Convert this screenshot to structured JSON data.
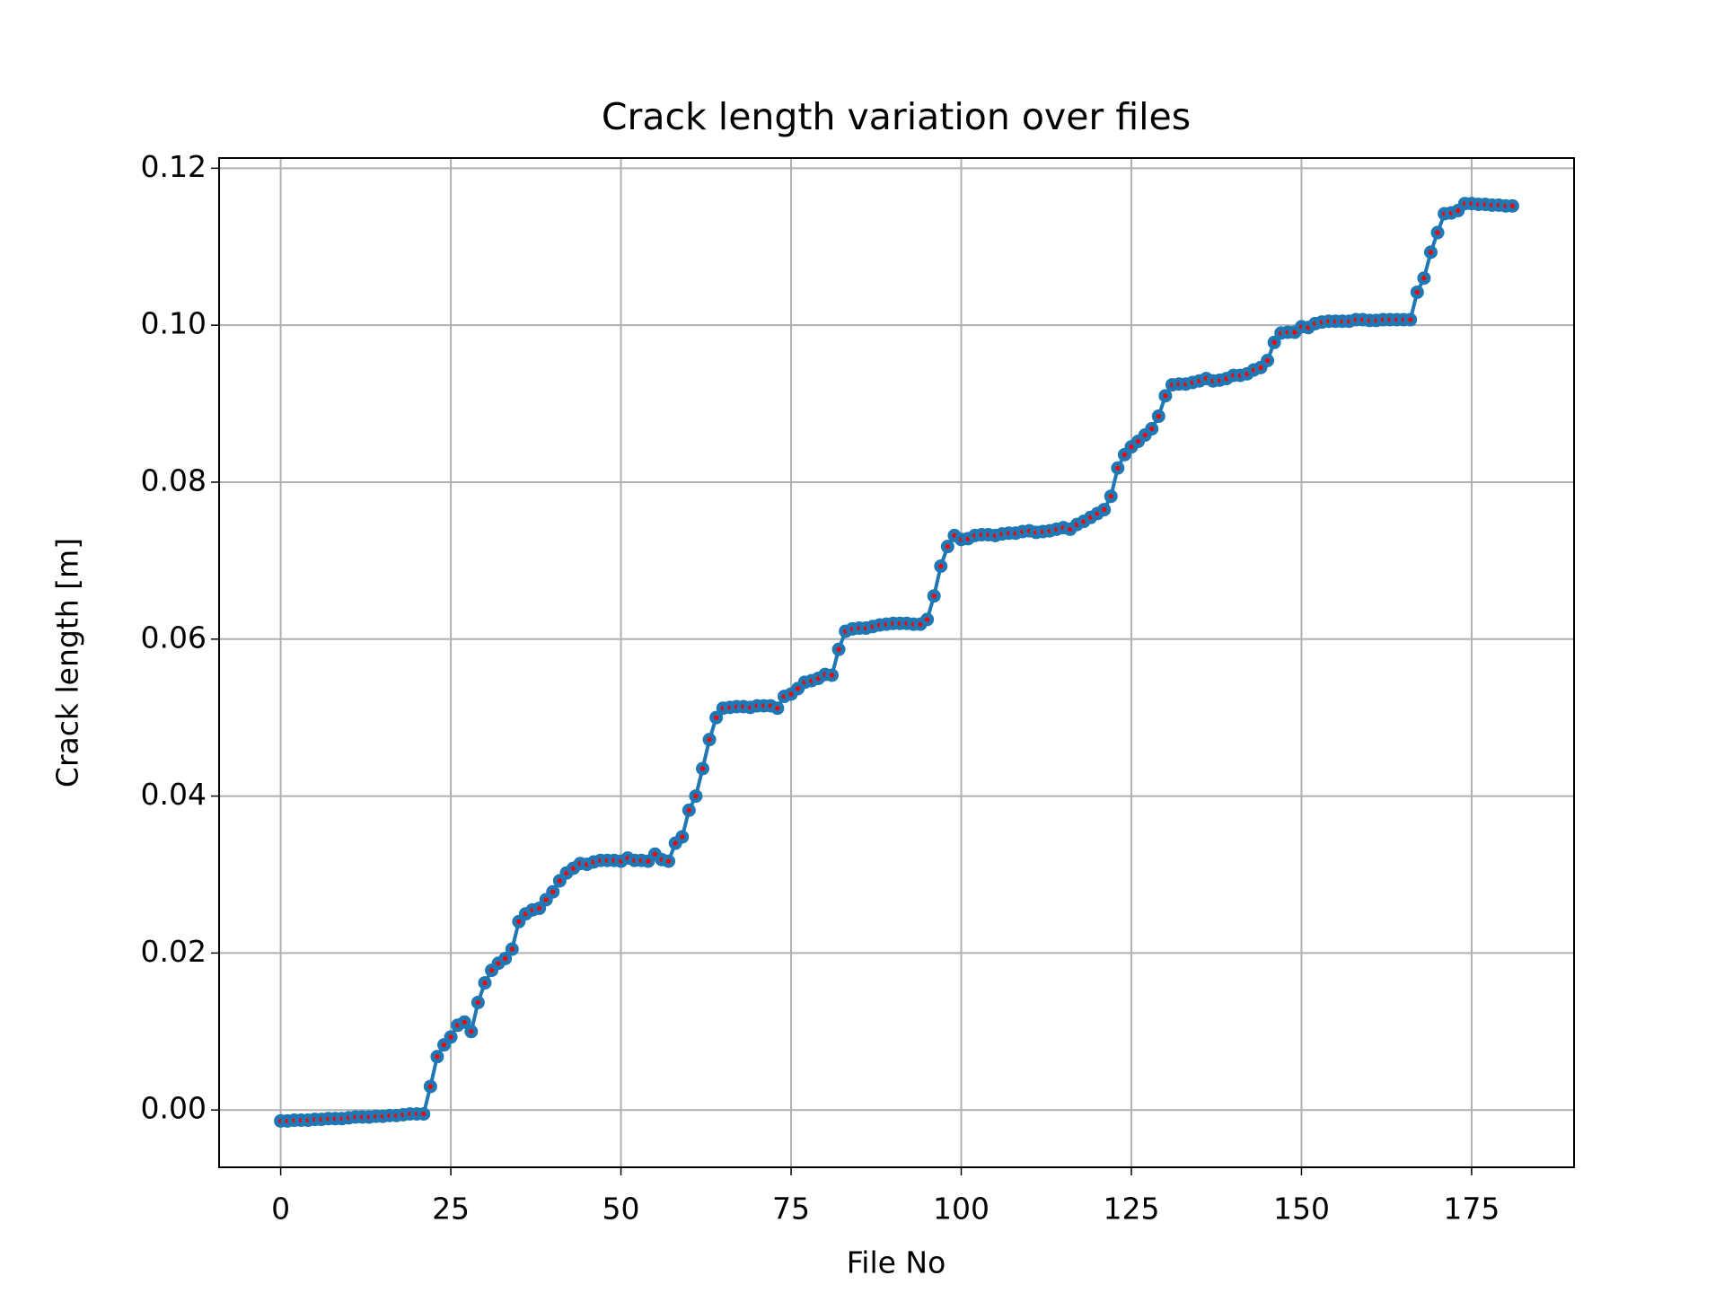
{
  "chart_data": {
    "type": "line",
    "title": "Crack length variation over files",
    "xlabel": "File No",
    "ylabel": "Crack length [m]",
    "xlim": [
      -9.05,
      190.05
    ],
    "ylim": [
      -0.0073,
      0.1213
    ],
    "xticks": [
      0,
      25,
      50,
      75,
      100,
      125,
      150,
      175
    ],
    "yticks": [
      {
        "value": 0,
        "label": "0.00"
      },
      {
        "value": 0.02,
        "label": "0.02"
      },
      {
        "value": 0.04,
        "label": "0.04"
      },
      {
        "value": 0.06,
        "label": "0.06"
      },
      {
        "value": 0.08,
        "label": "0.08"
      },
      {
        "value": 0.1,
        "label": "0.10"
      },
      {
        "value": 0.12,
        "label": "0.12"
      }
    ],
    "grid": true,
    "x": [
      0,
      1,
      2,
      3,
      4,
      5,
      6,
      7,
      8,
      9,
      10,
      11,
      12,
      13,
      14,
      15,
      16,
      17,
      18,
      19,
      20,
      21,
      22,
      23,
      24,
      25,
      26,
      27,
      28,
      29,
      30,
      31,
      32,
      33,
      34,
      35,
      36,
      37,
      38,
      39,
      40,
      41,
      42,
      43,
      44,
      45,
      46,
      47,
      48,
      49,
      50,
      51,
      52,
      53,
      54,
      55,
      56,
      57,
      58,
      59,
      60,
      61,
      62,
      63,
      64,
      65,
      66,
      67,
      68,
      69,
      70,
      71,
      72,
      73,
      74,
      75,
      76,
      77,
      78,
      79,
      80,
      81,
      82,
      83,
      84,
      85,
      86,
      87,
      88,
      89,
      90,
      91,
      92,
      93,
      94,
      95,
      96,
      97,
      98,
      99,
      100,
      101,
      102,
      103,
      104,
      105,
      106,
      107,
      108,
      109,
      110,
      111,
      112,
      113,
      114,
      115,
      116,
      117,
      118,
      119,
      120,
      121,
      122,
      123,
      124,
      125,
      126,
      127,
      128,
      129,
      130,
      131,
      132,
      133,
      134,
      135,
      136,
      137,
      138,
      139,
      140,
      141,
      142,
      143,
      144,
      145,
      146,
      147,
      148,
      149,
      150,
      151,
      152,
      153,
      154,
      155,
      156,
      157,
      158,
      159,
      160,
      161,
      162,
      163,
      164,
      165,
      166,
      167,
      168,
      169,
      170,
      171,
      172,
      173,
      174,
      175,
      176,
      177,
      178,
      179,
      180,
      181
    ],
    "series": [
      {
        "color": "#1f77b4",
        "marker_face_color": "#ff0000",
        "values": [
          -0.0014,
          -0.0014,
          -0.0013,
          -0.0013,
          -0.0013,
          -0.0012,
          -0.0012,
          -0.0011,
          -0.0011,
          -0.0011,
          -0.001,
          -0.0009,
          -0.0009,
          -0.0009,
          -0.0008,
          -0.0008,
          -0.0007,
          -0.0007,
          -0.0006,
          -0.0005,
          -0.0005,
          -0.0005,
          0.003,
          0.0068,
          0.0083,
          0.0093,
          0.0108,
          0.0112,
          0.01,
          0.0137,
          0.0162,
          0.0178,
          0.0187,
          0.0193,
          0.0205,
          0.024,
          0.025,
          0.0255,
          0.0257,
          0.0268,
          0.0278,
          0.0292,
          0.0302,
          0.0308,
          0.0314,
          0.0313,
          0.0316,
          0.0318,
          0.0318,
          0.0318,
          0.0317,
          0.0321,
          0.0318,
          0.0318,
          0.0317,
          0.0326,
          0.0319,
          0.0317,
          0.034,
          0.0348,
          0.0382,
          0.04,
          0.0435,
          0.0472,
          0.05,
          0.0512,
          0.0513,
          0.0514,
          0.0514,
          0.0513,
          0.0515,
          0.0515,
          0.0515,
          0.0512,
          0.0527,
          0.053,
          0.0537,
          0.0545,
          0.0547,
          0.055,
          0.0555,
          0.0554,
          0.0587,
          0.061,
          0.0613,
          0.0614,
          0.0614,
          0.0616,
          0.0618,
          0.0619,
          0.062,
          0.062,
          0.062,
          0.0619,
          0.0619,
          0.0625,
          0.0655,
          0.0693,
          0.0718,
          0.0732,
          0.0727,
          0.0728,
          0.0732,
          0.0733,
          0.0733,
          0.0732,
          0.0734,
          0.0735,
          0.0735,
          0.0737,
          0.0738,
          0.0736,
          0.0737,
          0.0738,
          0.074,
          0.0742,
          0.074,
          0.0746,
          0.075,
          0.0755,
          0.076,
          0.0765,
          0.0782,
          0.0818,
          0.0835,
          0.0845,
          0.0852,
          0.086,
          0.0868,
          0.0884,
          0.091,
          0.0924,
          0.0925,
          0.0925,
          0.0927,
          0.0929,
          0.0932,
          0.0929,
          0.093,
          0.0932,
          0.0936,
          0.0936,
          0.0938,
          0.0943,
          0.0946,
          0.0955,
          0.0978,
          0.099,
          0.0991,
          0.0991,
          0.0998,
          0.0997,
          0.1002,
          0.1004,
          0.1005,
          0.1005,
          0.1005,
          0.1005,
          0.1007,
          0.1007,
          0.1006,
          0.1006,
          0.1007,
          0.1007,
          0.1007,
          0.1007,
          0.1007,
          0.1042,
          0.106,
          0.1093,
          0.1118,
          0.1142,
          0.1143,
          0.1146,
          0.1155,
          0.1155,
          0.1154,
          0.1154,
          0.1153,
          0.1153,
          0.1152,
          0.1152
        ]
      }
    ]
  }
}
